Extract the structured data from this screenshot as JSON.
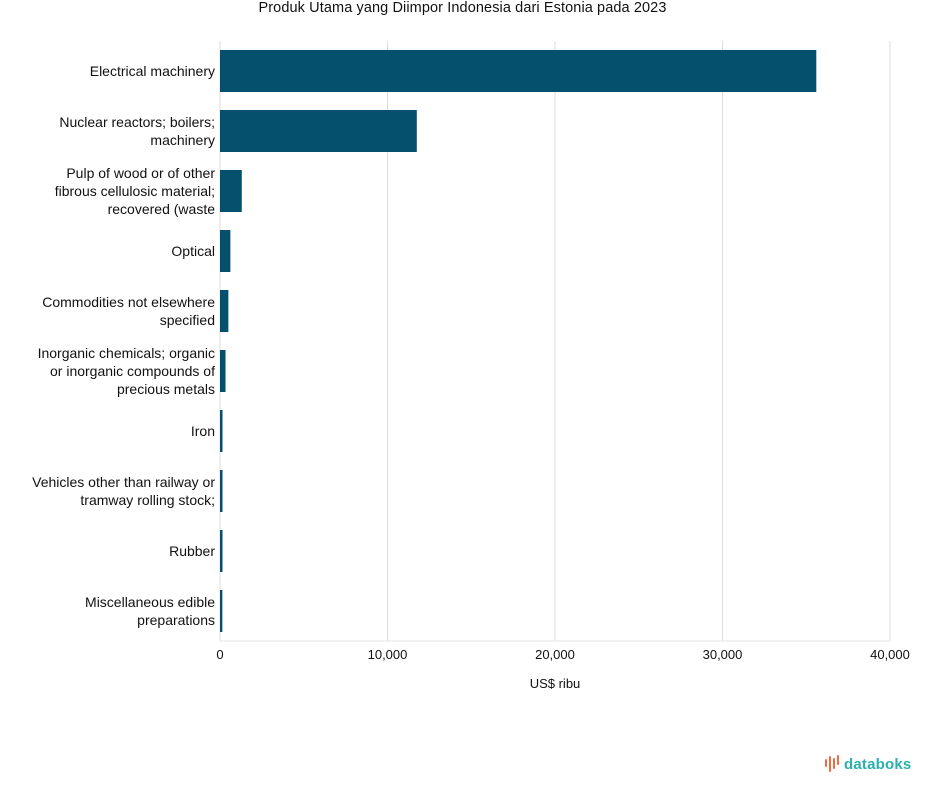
{
  "chart_data": {
    "type": "bar",
    "orientation": "horizontal",
    "title": "Produk Utama yang Diimpor Indonesia dari Estonia pada 2023",
    "xlabel": "US$ ribu",
    "ylabel": "",
    "xlim": [
      0,
      40000
    ],
    "xticks": [
      0,
      10000,
      20000,
      30000,
      40000
    ],
    "xtick_labels": [
      "0",
      "10,000",
      "20,000",
      "30,000",
      "40,000"
    ],
    "grid": true,
    "bar_color": "#04506d",
    "categories": [
      [
        "Electrical machinery"
      ],
      [
        "Nuclear reactors; boilers;",
        "machinery"
      ],
      [
        "Pulp of wood or of other",
        "fibrous cellulosic material;",
        "recovered (waste"
      ],
      [
        "Optical"
      ],
      [
        "Commodities not elsewhere",
        "specified"
      ],
      [
        "Inorganic chemicals; organic",
        "or inorganic compounds of",
        "precious metals"
      ],
      [
        "Iron"
      ],
      [
        "Vehicles other than railway or",
        "tramway rolling stock;"
      ],
      [
        "Rubber"
      ],
      [
        "Miscellaneous edible",
        "preparations"
      ]
    ],
    "values": [
      35600,
      11750,
      1300,
      620,
      500,
      330,
      150,
      150,
      150,
      140
    ]
  },
  "branding": {
    "name": "databoks",
    "color": "#2bb0ad",
    "icon_color": "#f26b43"
  }
}
